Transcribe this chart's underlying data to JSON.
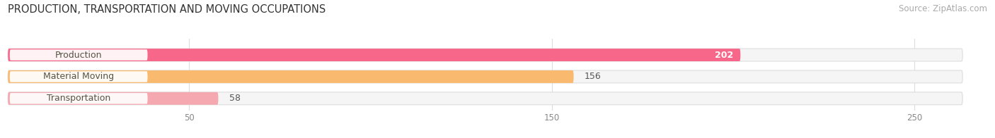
{
  "title": "PRODUCTION, TRANSPORTATION AND MOVING OCCUPATIONS",
  "source": "Source: ZipAtlas.com",
  "categories": [
    "Production",
    "Material Moving",
    "Transportation"
  ],
  "values": [
    202,
    156,
    58
  ],
  "bar_colors": [
    "#f7678a",
    "#f9b96e",
    "#f5a8b0"
  ],
  "bg_color": "#f0f0f0",
  "value_labels": [
    "202",
    "156",
    "58"
  ],
  "value_label_inside": [
    true,
    false,
    false
  ],
  "xticks": [
    50,
    150,
    250
  ],
  "xlim": [
    0,
    270
  ],
  "title_fontsize": 10.5,
  "source_fontsize": 8.5,
  "bar_label_fontsize": 9,
  "category_label_fontsize": 9,
  "figsize": [
    14.06,
    1.96
  ],
  "dpi": 100
}
